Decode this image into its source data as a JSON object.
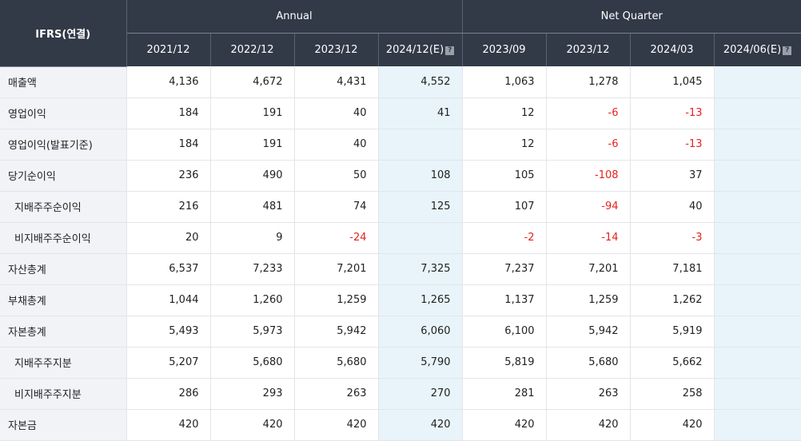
{
  "header": {
    "corner": "IFRS(연결)",
    "annual": "Annual",
    "quarter": "Net Quarter",
    "columns": [
      "2021/12",
      "2022/12",
      "2023/12",
      "2024/12(E)",
      "2023/09",
      "2023/12",
      "2024/03",
      "2024/06(E)"
    ],
    "estimate_columns": [
      3,
      7
    ]
  },
  "rows": [
    {
      "label": "매출액",
      "sub": false,
      "values": [
        "4,136",
        "4,672",
        "4,431",
        "4,552",
        "1,063",
        "1,278",
        "1,045",
        ""
      ]
    },
    {
      "label": "영업이익",
      "sub": false,
      "values": [
        "184",
        "191",
        "40",
        "41",
        "12",
        "-6",
        "-13",
        ""
      ]
    },
    {
      "label": "영업이익(발표기준)",
      "sub": false,
      "values": [
        "184",
        "191",
        "40",
        "",
        "12",
        "-6",
        "-13",
        ""
      ]
    },
    {
      "label": "당기순이익",
      "sub": false,
      "values": [
        "236",
        "490",
        "50",
        "108",
        "105",
        "-108",
        "37",
        ""
      ]
    },
    {
      "label": "지배주주순이익",
      "sub": true,
      "values": [
        "216",
        "481",
        "74",
        "125",
        "107",
        "-94",
        "40",
        ""
      ]
    },
    {
      "label": "비지배주주순이익",
      "sub": true,
      "values": [
        "20",
        "9",
        "-24",
        "",
        "-2",
        "-14",
        "-3",
        ""
      ]
    },
    {
      "label": "자산총계",
      "sub": false,
      "values": [
        "6,537",
        "7,233",
        "7,201",
        "7,325",
        "7,237",
        "7,201",
        "7,181",
        ""
      ]
    },
    {
      "label": "부채총계",
      "sub": false,
      "values": [
        "1,044",
        "1,260",
        "1,259",
        "1,265",
        "1,137",
        "1,259",
        "1,262",
        ""
      ]
    },
    {
      "label": "자본총계",
      "sub": false,
      "values": [
        "5,493",
        "5,973",
        "5,942",
        "6,060",
        "6,100",
        "5,942",
        "5,919",
        ""
      ]
    },
    {
      "label": "지배주주지분",
      "sub": true,
      "values": [
        "5,207",
        "5,680",
        "5,680",
        "5,790",
        "5,819",
        "5,680",
        "5,662",
        ""
      ]
    },
    {
      "label": "비지배주주지분",
      "sub": true,
      "values": [
        "286",
        "293",
        "263",
        "270",
        "281",
        "263",
        "258",
        ""
      ]
    },
    {
      "label": "자본금",
      "sub": false,
      "values": [
        "420",
        "420",
        "420",
        "420",
        "420",
        "420",
        "420",
        ""
      ]
    }
  ],
  "colors": {
    "header_bg": "#323a48",
    "negative": "#e8211a",
    "estimate_bg": "#e8f4fa",
    "label_bg": "#f1f3f7"
  },
  "icons": {
    "estimate_help": "question-mark-icon"
  }
}
